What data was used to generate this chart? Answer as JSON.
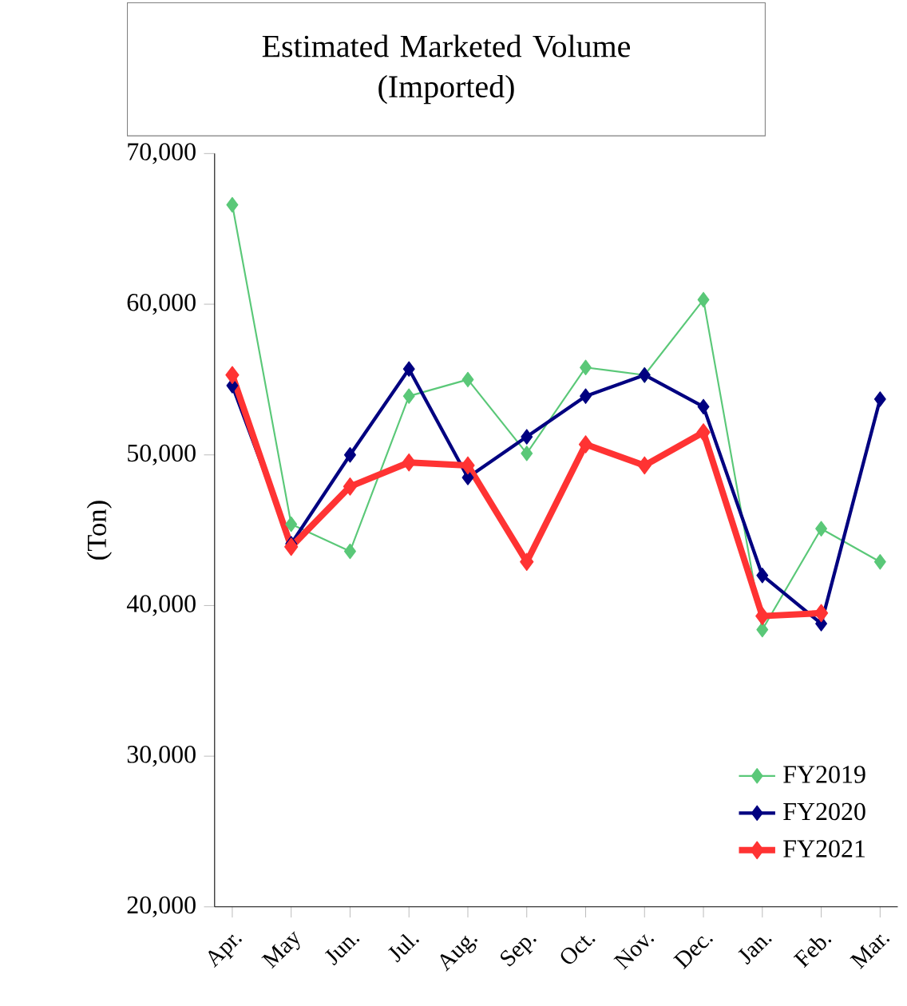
{
  "chart_data": {
    "type": "line",
    "title": "Estimated Marketed Volume\n(Imported)",
    "ylabel": "(Ton)",
    "categories": [
      "Apr.",
      "May",
      "Jun.",
      "Jul.",
      "Aug.",
      "Sep.",
      "Oct.",
      "Nov.",
      "Dec.",
      "Jan.",
      "Feb.",
      "Mar."
    ],
    "series": [
      {
        "name": "FY2019",
        "color": "#5ac878",
        "values": [
          66600,
          45400,
          43600,
          53900,
          55000,
          50100,
          55800,
          55300,
          60300,
          38400,
          45100,
          42900
        ]
      },
      {
        "name": "FY2020",
        "color": "#000080",
        "values": [
          54600,
          44100,
          50000,
          55700,
          48500,
          51200,
          53900,
          55300,
          53200,
          42000,
          38800,
          53700
        ]
      },
      {
        "name": "FY2021",
        "color": "#ff3333",
        "values": [
          55300,
          43900,
          47900,
          49500,
          49300,
          42900,
          50700,
          49300,
          51500,
          39300,
          39500,
          null
        ]
      }
    ],
    "ylim": [
      20000,
      70000
    ],
    "yticks": [
      {
        "value": 20000,
        "label": "20,000"
      },
      {
        "value": 30000,
        "label": "30,000"
      },
      {
        "value": 40000,
        "label": "40,000"
      },
      {
        "value": 50000,
        "label": "50,000"
      },
      {
        "value": 60000,
        "label": "60,000"
      },
      {
        "value": 70000,
        "label": "70,000"
      }
    ],
    "legend": "bottom right",
    "marker": "diamond",
    "line_style": "solid",
    "grid": false
  }
}
